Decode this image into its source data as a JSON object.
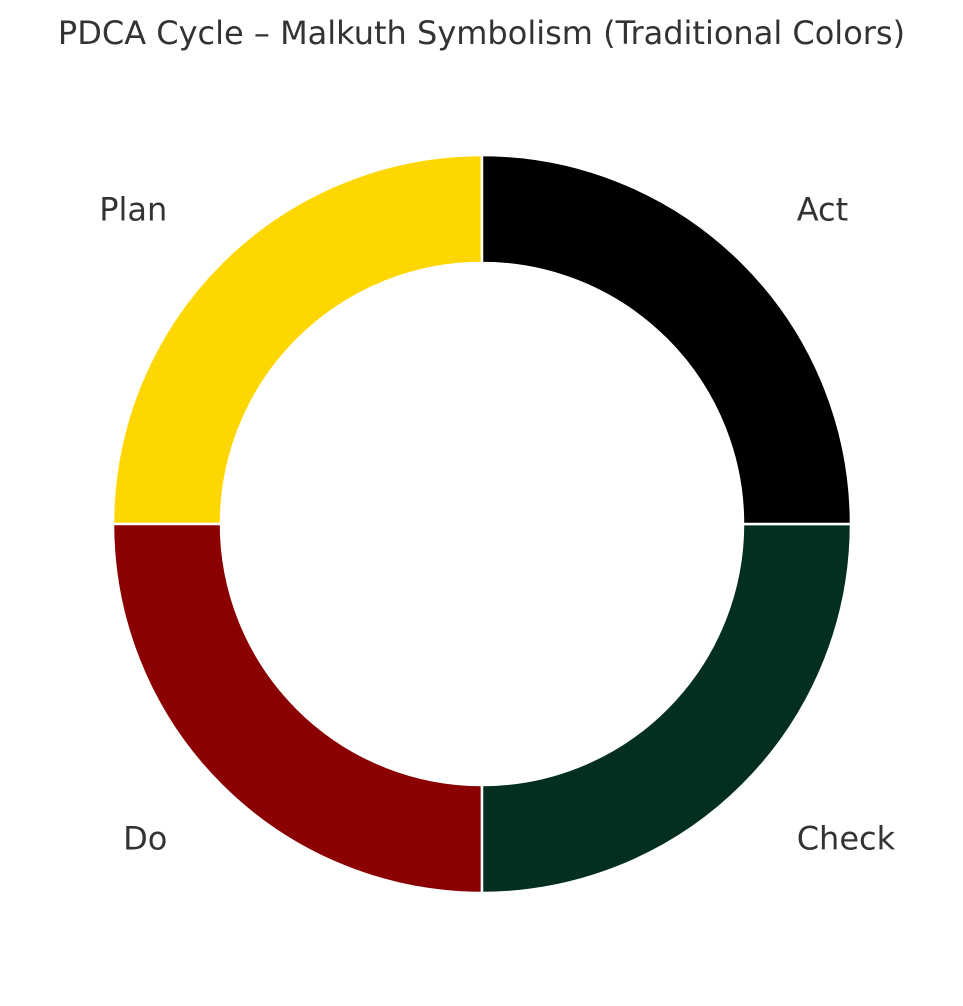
{
  "chart_data": {
    "type": "pie",
    "title": "PDCA Cycle – Malkuth Symbolism (Traditional Colors)",
    "donut": true,
    "slices": [
      {
        "label": "Plan",
        "value": 25,
        "color": "#FFD700"
      },
      {
        "label": "Do",
        "value": 25,
        "color": "#8B0000"
      },
      {
        "label": "Check",
        "value": 25,
        "color": "#032F1F"
      },
      {
        "label": "Act",
        "value": 25,
        "color": "#000000"
      }
    ],
    "legend": "none"
  },
  "colors": {
    "text": "#333333",
    "slice_edge": "#FFFFFF",
    "background": "#FFFFFF"
  }
}
